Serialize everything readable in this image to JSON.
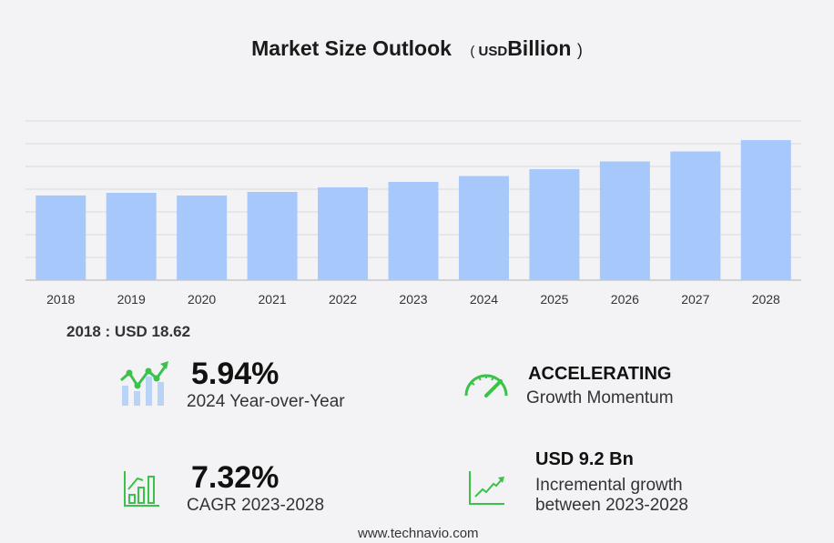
{
  "title": {
    "main": "Market Size Outlook",
    "paren_open": "(",
    "unit": "USD",
    "unit_word": "Billion",
    "paren_close": ")"
  },
  "base_label": "2018 : USD  18.62",
  "stats": {
    "yoy": {
      "value": "5.94%",
      "label": "2024 Year-over-Year",
      "icon": "growth-chart-icon"
    },
    "momentum": {
      "value": "ACCELERATING",
      "label": "Growth Momentum",
      "icon": "speedometer-icon"
    },
    "cagr": {
      "value": "7.32%",
      "label": "CAGR 2023-2028",
      "icon": "bar-growth-icon"
    },
    "incremental": {
      "value": "USD 9.2 Bn",
      "label_line1": "Incremental growth",
      "label_line2": "between 2023-2028",
      "icon": "trend-line-icon"
    }
  },
  "footer": "www.technavio.com",
  "colors": {
    "bar": "#a6c8fb",
    "accent": "#3cc24a",
    "grid": "#d8d8dc"
  },
  "chart_data": {
    "type": "bar",
    "title": "Market Size Outlook (USD Billion)",
    "xlabel": "",
    "ylabel": "",
    "categories": [
      "2018",
      "2019",
      "2020",
      "2021",
      "2022",
      "2023",
      "2024",
      "2025",
      "2026",
      "2027",
      "2028"
    ],
    "values": [
      18.62,
      19.2,
      18.6,
      19.4,
      20.4,
      21.6,
      22.9,
      24.4,
      26.1,
      28.3,
      30.8
    ],
    "ylim": [
      0,
      35
    ],
    "grid": true,
    "y_grid_step": 5
  }
}
